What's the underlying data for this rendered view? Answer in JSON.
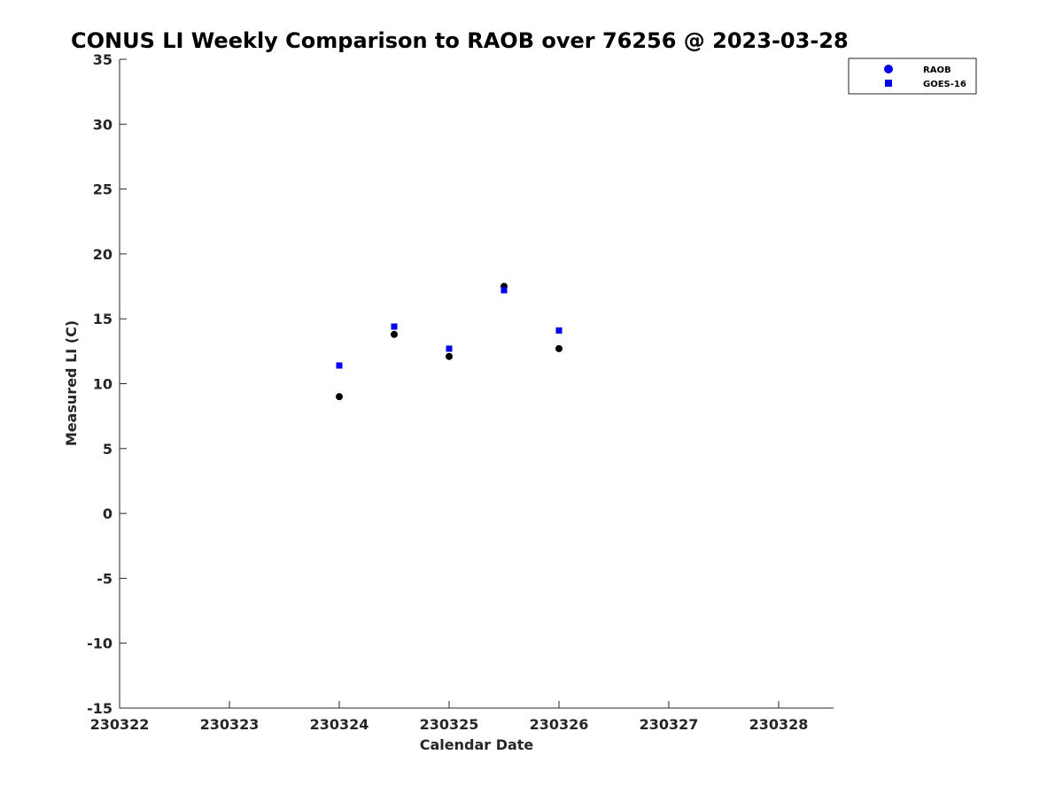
{
  "chart_data": {
    "type": "scatter",
    "title": "CONUS LI Weekly Comparison to RAOB over 76256 @ 2023-03-28",
    "xlabel": "Calendar Date",
    "ylabel": "Measured LI (C)",
    "xlim": [
      230322,
      230328.5
    ],
    "ylim": [
      -15,
      35
    ],
    "x_ticks": [
      230322,
      230323,
      230324,
      230325,
      230326,
      230327,
      230328
    ],
    "y_ticks": [
      -15,
      -10,
      -5,
      0,
      5,
      10,
      15,
      20,
      25,
      30,
      35
    ],
    "grid": false,
    "legend": {
      "position": "top-right-outside",
      "entries": [
        {
          "label": "RAOB",
          "marker": "circle",
          "color": "#0000ee"
        },
        {
          "label": "GOES-16",
          "marker": "square",
          "color": "#0000ee"
        }
      ]
    },
    "series": [
      {
        "name": "RAOB",
        "marker": "circle",
        "color": "#000000",
        "x": [
          230324,
          230324.5,
          230325,
          230325.5,
          230326
        ],
        "y": [
          9.0,
          13.8,
          12.1,
          17.5,
          12.7
        ]
      },
      {
        "name": "GOES-16",
        "marker": "square",
        "color": "#0000ee",
        "x": [
          230324,
          230324.5,
          230325,
          230325.5,
          230326
        ],
        "y": [
          11.4,
          14.4,
          12.7,
          17.2,
          14.1
        ]
      }
    ]
  }
}
